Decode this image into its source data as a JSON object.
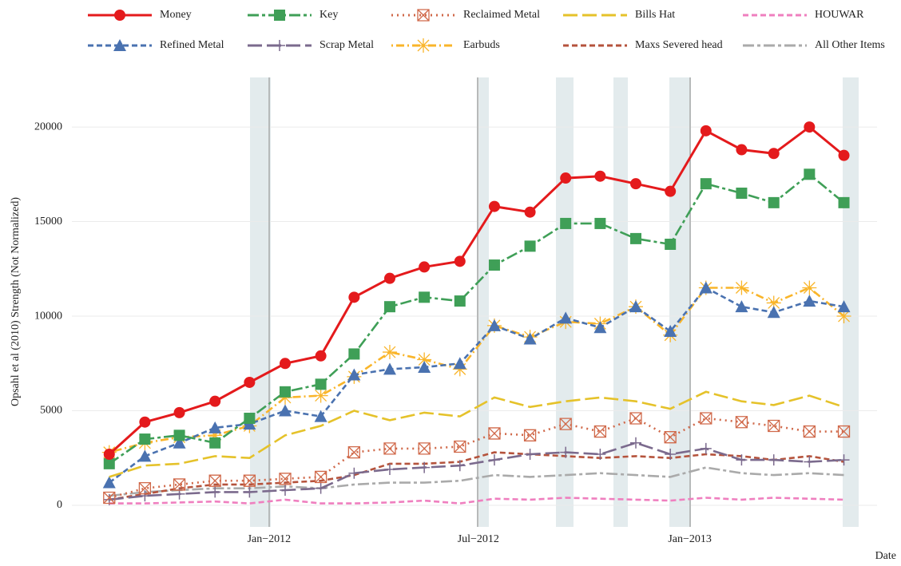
{
  "chart_data": {
    "type": "line",
    "y_label": "Opsahl et al (2010)  Strength (Not Normalized)",
    "x_label": "Date",
    "x": [
      "2011-08",
      "2011-09",
      "2011-10",
      "2011-11",
      "2011-12",
      "2012-01",
      "2012-02",
      "2012-03",
      "2012-04",
      "2012-05",
      "2012-06",
      "2012-07",
      "2012-08",
      "2012-09",
      "2012-10",
      "2012-11",
      "2012-12",
      "2013-01",
      "2013-02",
      "2013-03",
      "2013-04",
      "2013-05"
    ],
    "xlim": [
      "2011-07",
      "2013-06"
    ],
    "xticks": [
      {
        "value": "2012-01",
        "label": "Jan−2012"
      },
      {
        "value": "2012-07",
        "label": "Jul−2012"
      },
      {
        "value": "2013-01",
        "label": "Jan−2013"
      }
    ],
    "ylim": [
      -1140,
      22620
    ],
    "yticks": [
      0,
      5000,
      10000,
      15000,
      20000
    ],
    "grid": true,
    "legend": "top",
    "series": [
      {
        "name": "Money",
        "color": "#e41a1c",
        "linestyle": "solid",
        "marker": "circle",
        "values": [
          2700,
          4400,
          4900,
          5500,
          6500,
          7500,
          7900,
          11000,
          12000,
          12600,
          12900,
          15800,
          15500,
          17300,
          17400,
          17000,
          16600,
          19800,
          18800,
          18600,
          20000,
          18500
        ]
      },
      {
        "name": "Key",
        "color": "#3f9f57",
        "linestyle": "twodash",
        "marker": "square",
        "values": [
          2200,
          3500,
          3700,
          3300,
          4600,
          6000,
          6400,
          8000,
          10500,
          11000,
          10800,
          12700,
          13700,
          14900,
          14900,
          14100,
          13800,
          17000,
          16500,
          16000,
          17500,
          16000
        ]
      },
      {
        "name": "Reclaimed Metal",
        "color": "#d0694a",
        "linestyle": "dotted",
        "marker": "boxx",
        "values": [
          400,
          900,
          1100,
          1300,
          1300,
          1400,
          1500,
          2800,
          3000,
          3000,
          3100,
          3800,
          3700,
          4300,
          3900,
          4600,
          3600,
          4600,
          4400,
          4200,
          3900,
          3900
        ]
      },
      {
        "name": "Bills Hat",
        "color": "#e5c22a",
        "linestyle": "longdash",
        "marker": "none",
        "values": [
          1500,
          2100,
          2200,
          2600,
          2500,
          3700,
          4200,
          5000,
          4500,
          4900,
          4700,
          5700,
          5200,
          5500,
          5700,
          5500,
          5100,
          6000,
          5500,
          5300,
          5800,
          5200
        ]
      },
      {
        "name": "HOUWAR",
        "color": "#ef7fbf",
        "linestyle": "dashed",
        "marker": "none",
        "values": [
          100,
          100,
          150,
          200,
          100,
          300,
          100,
          100,
          150,
          250,
          100,
          350,
          300,
          400,
          350,
          300,
          250,
          400,
          300,
          400,
          350,
          300
        ]
      },
      {
        "name": "Refined Metal",
        "color": "#4a72b0",
        "linestyle": "dashed",
        "marker": "triangle",
        "values": [
          1200,
          2600,
          3300,
          4100,
          4300,
          5000,
          4700,
          6900,
          7200,
          7300,
          7500,
          9500,
          8800,
          9900,
          9400,
          10500,
          9200,
          11500,
          10500,
          10200,
          10800,
          10500
        ]
      },
      {
        "name": "Scrap Metal",
        "color": "#7b6a8d",
        "linestyle": "longdash",
        "marker": "plus",
        "values": [
          300,
          500,
          600,
          700,
          700,
          800,
          900,
          1700,
          1900,
          2000,
          2100,
          2400,
          2700,
          2800,
          2700,
          3300,
          2700,
          3000,
          2400,
          2400,
          2300,
          2400
        ]
      },
      {
        "name": "Earbuds",
        "color": "#f9b52a",
        "linestyle": "dotdash",
        "marker": "asterisk",
        "values": [
          2800,
          3300,
          3600,
          3700,
          4200,
          5700,
          5800,
          6800,
          8100,
          7700,
          7200,
          9500,
          8900,
          9700,
          9600,
          10500,
          9000,
          11500,
          11500,
          10700,
          11500,
          10000
        ]
      },
      {
        "name": "Maxs Severed head",
        "color": "#b5533c",
        "linestyle": "dashed",
        "marker": "none",
        "values": [
          300,
          600,
          900,
          1100,
          1100,
          1200,
          1300,
          1600,
          2200,
          2200,
          2300,
          2800,
          2700,
          2600,
          2500,
          2600,
          2500,
          2700,
          2600,
          2400,
          2600,
          2300
        ]
      },
      {
        "name": "All Other Items",
        "color": "#aaaaaa",
        "linestyle": "twodash",
        "marker": "none",
        "values": [
          500,
          700,
          800,
          900,
          900,
          1000,
          900,
          1100,
          1200,
          1200,
          1300,
          1600,
          1500,
          1600,
          1700,
          1600,
          1500,
          2000,
          1700,
          1600,
          1700,
          1600
        ]
      }
    ]
  }
}
